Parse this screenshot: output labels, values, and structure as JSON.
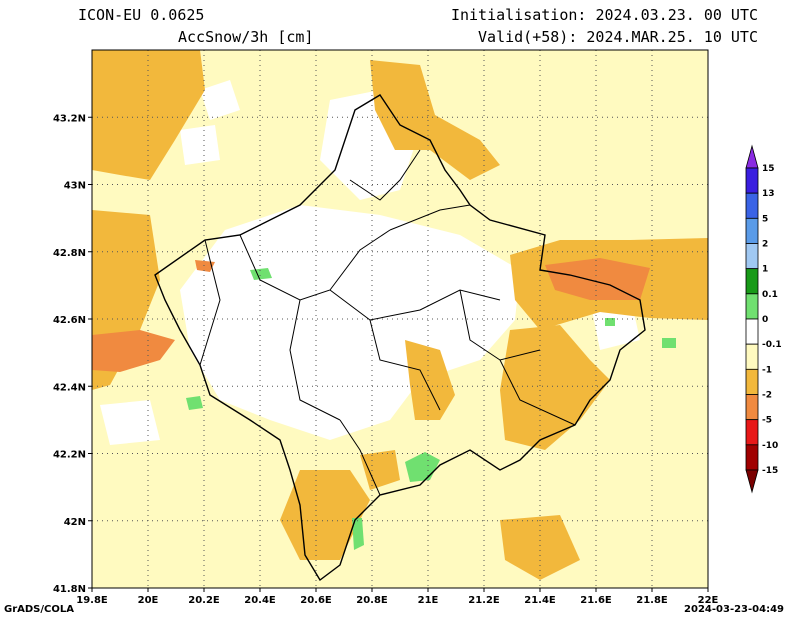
{
  "header": {
    "model": "ICON-EU 0.0625",
    "variable": "AccSnow/3h [cm]",
    "init": "Initialisation: 2024.03.23. 00 UTC",
    "valid": "Valid(+58): 2024.MAR.25. 10 UTC"
  },
  "footer": {
    "left": "GrADS/COLA",
    "right": "2024-03-23-04:49"
  },
  "map": {
    "x_ticks": [
      "19.8E",
      "20E",
      "20.2E",
      "20.4E",
      "20.6E",
      "20.8E",
      "21E",
      "21.2E",
      "21.4E",
      "21.6E",
      "21.8E",
      "22E"
    ],
    "y_ticks": [
      "43.2N",
      "43N",
      "42.8N",
      "42.6N",
      "42.4N",
      "42.2N",
      "42N",
      "41.8N"
    ],
    "lon_range": [
      19.8,
      22.0
    ],
    "lat_range": [
      41.8,
      43.4
    ],
    "colors": {
      "lightyellow": "#fffac0",
      "orange": "#f2b83c",
      "darkorange": "#f08a40",
      "green": "#70e070",
      "border": "#000000"
    }
  },
  "colorbar": {
    "labels": [
      "15",
      "13",
      "5",
      "2",
      "1",
      "0.1",
      "0",
      "-0.1",
      "-1",
      "-2",
      "-5",
      "-10",
      "-15"
    ],
    "colors": [
      "#3a1ee0",
      "#3a63e6",
      "#5a9be8",
      "#a0c8f2",
      "#189a18",
      "#70e070",
      "#ffffff",
      "#fffac0",
      "#f2b83c",
      "#f08a40",
      "#e81818",
      "#a00000"
    ],
    "top_arrow_color": "#8a2be2",
    "bottom_arrow_color": "#7a0000"
  }
}
